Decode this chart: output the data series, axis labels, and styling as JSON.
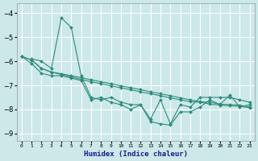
{
  "xlabel": "Humidex (Indice chaleur)",
  "bg_color": "#cce8e8",
  "grid_color": "#ffffff",
  "line_color": "#2e8b7a",
  "xlim": [
    -0.5,
    23.5
  ],
  "ylim": [
    -9.3,
    -3.6
  ],
  "yticks": [
    -9,
    -8,
    -7,
    -6,
    -5,
    -4
  ],
  "xtick_labels": [
    "0",
    "1",
    "2",
    "3",
    "4",
    "5",
    "6",
    "7",
    "8",
    "9",
    "10",
    "11",
    "12",
    "13",
    "14",
    "15",
    "16",
    "17",
    "18",
    "19",
    "20",
    "21",
    "22",
    "23"
  ],
  "series": [
    [
      null,
      -5.9,
      -6.0,
      -6.3,
      -4.2,
      -4.6,
      -6.6,
      -7.5,
      -7.6,
      -7.5,
      -7.7,
      -7.8,
      -7.8,
      -8.4,
      -7.6,
      -8.6,
      -7.8,
      -7.9,
      -7.5,
      -7.5,
      -7.5,
      -7.5,
      -7.6,
      -7.7
    ],
    [
      -5.8,
      -5.95,
      -6.3,
      -6.45,
      -6.52,
      -6.6,
      -6.68,
      -6.77,
      -6.85,
      -6.93,
      -7.02,
      -7.1,
      -7.18,
      -7.27,
      -7.35,
      -7.43,
      -7.52,
      -7.6,
      -7.68,
      -7.7,
      -7.78,
      -7.8,
      -7.82,
      -7.9
    ],
    [
      -5.8,
      -5.95,
      -6.3,
      -6.45,
      -6.55,
      -6.65,
      -6.75,
      -6.85,
      -6.93,
      -7.02,
      -7.1,
      -7.18,
      -7.27,
      -7.35,
      -7.43,
      -7.52,
      -7.6,
      -7.68,
      -7.7,
      -7.78,
      -7.82,
      -7.85,
      -7.87,
      -7.93
    ],
    [
      -5.8,
      -6.1,
      -6.5,
      -6.6,
      -6.6,
      -6.7,
      -6.8,
      -7.6,
      -7.5,
      -7.7,
      -7.8,
      -8.0,
      -7.8,
      -8.5,
      -8.6,
      -8.65,
      -8.1,
      -8.1,
      -7.9,
      -7.6,
      -7.8,
      -7.4,
      -7.9,
      -7.8
    ]
  ]
}
